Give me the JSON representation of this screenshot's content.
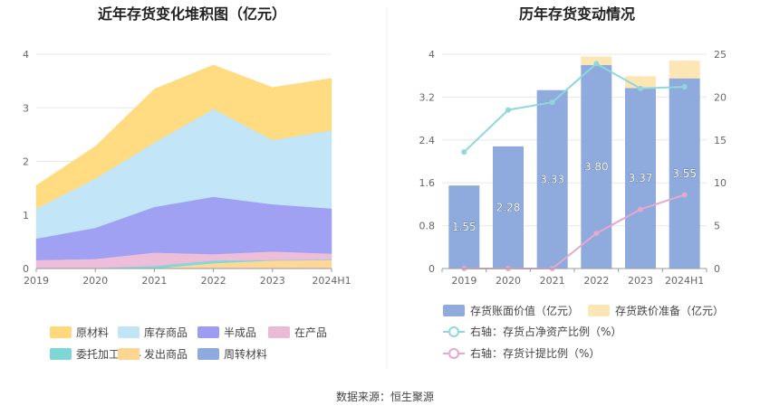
{
  "chart_data": [
    {
      "type": "area",
      "title": "近年存货变化堆积图（亿元）",
      "categories": [
        "2019",
        "2020",
        "2021",
        "2022",
        "2023",
        "2024H1"
      ],
      "ylim": [
        0,
        4
      ],
      "yticks": [
        "0",
        "1",
        "2",
        "3",
        "4"
      ],
      "grid": true,
      "legend_position": "bottom",
      "series": [
        {
          "name": "周转材料",
          "color": "#8faadc",
          "values": [
            0,
            0,
            0,
            0,
            0,
            0
          ]
        },
        {
          "name": "发出商品",
          "color": "#fdd694",
          "values": [
            0,
            0,
            0,
            0.1,
            0.15,
            0.16
          ]
        },
        {
          "name": "委托加工材料",
          "color": "#7fd6d6",
          "values": [
            0.01,
            0.01,
            0.05,
            0.05,
            0.01,
            0.01
          ]
        },
        {
          "name": "在产品",
          "color": "#ebbad7",
          "values": [
            0.15,
            0.17,
            0.25,
            0.12,
            0.16,
            0.11
          ]
        },
        {
          "name": "半成品",
          "color": "#9b9cf2",
          "values": [
            0.4,
            0.58,
            0.85,
            1.07,
            0.88,
            0.84
          ]
        },
        {
          "name": "库存商品",
          "color": "#bfe5f7",
          "values": [
            0.56,
            0.92,
            1.2,
            1.64,
            1.2,
            1.46
          ]
        },
        {
          "name": "原材料",
          "color": "#ffd97a",
          "values": [
            0.43,
            0.6,
            1.0,
            0.82,
            0.98,
            0.97
          ]
        }
      ],
      "legend_order": [
        "原材料",
        "库存商品",
        "半成品",
        "在产品",
        "委托加工材料",
        "发出商品",
        "周转材料"
      ]
    },
    {
      "type": "bar",
      "title": "历年存货变动情况",
      "categories": [
        "2019",
        "2020",
        "2021",
        "2022",
        "2023",
        "2024H1"
      ],
      "ylim": [
        0,
        4
      ],
      "yticks": [
        "0",
        "0.8",
        "1.6",
        "2.4",
        "3.2",
        "4"
      ],
      "y2lim": [
        0,
        25
      ],
      "y2ticks": [
        "0",
        "5",
        "10",
        "15",
        "20",
        "25"
      ],
      "grid": true,
      "legend_position": "bottom",
      "bars": [
        {
          "name": "存货账面价值（亿元）",
          "color": "#8faadc",
          "values": [
            1.55,
            2.28,
            3.33,
            3.8,
            3.37,
            3.55
          ],
          "labels": [
            "1.55",
            "2.28",
            "3.33",
            "3.80",
            "3.37",
            "3.55"
          ]
        },
        {
          "name": "存货跌价准备（亿元）",
          "color": "#fde6b5",
          "values": [
            0,
            0,
            0,
            0.16,
            0.22,
            0.33
          ]
        }
      ],
      "lines": [
        {
          "name": "右轴：存货占净资产比例（%）",
          "color": "#8ed7db",
          "values": [
            13.6,
            18.5,
            19.4,
            23.9,
            21.0,
            21.2
          ]
        },
        {
          "name": "右轴：存货计提比例（%）",
          "color": "#e4a9cd",
          "values": [
            0,
            0,
            0,
            4.1,
            6.9,
            8.6
          ]
        }
      ]
    }
  ],
  "source": "数据来源：恒生聚源"
}
